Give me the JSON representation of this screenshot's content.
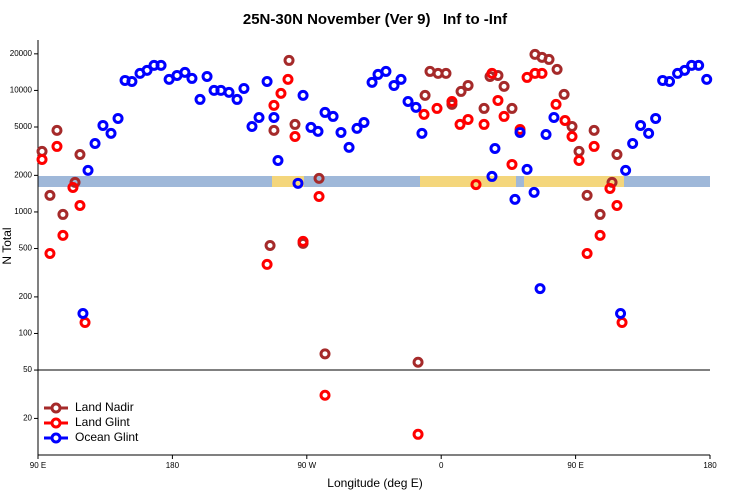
{
  "chart_data": {
    "type": "scatter",
    "title": "25N-30N November (Ver 9)   Inf to -Inf",
    "x_label": "Longitude (deg E)",
    "y_label": "N Total",
    "xlim": [
      90,
      540
    ],
    "xticks": [
      {
        "value": 90,
        "label": "90 E"
      },
      180,
      {
        "value": 270,
        "label": "90 W"
      },
      {
        "value": 360,
        "label": "0"
      },
      {
        "value": 450,
        "label": "90 E"
      },
      {
        "value": 540,
        "label": "180"
      }
    ],
    "ylim": [
      10,
      27000
    ],
    "log_y": true,
    "yticks": [
      20,
      50,
      100,
      200,
      500,
      1000,
      2000,
      5000,
      10000,
      20000
    ],
    "reference_line": 50,
    "legend": "bottom-left",
    "series": [
      {
        "name": "Land Nadir",
        "color": "#a52a2a",
        "x": [
          92.7,
          98.0,
          102.7,
          106.7,
          114.8,
          118.1,
          245.4,
          248.0,
          258.1,
          262.1,
          267.5,
          278.2,
          282.2,
          344.5,
          349.2,
          352.5,
          357.9,
          363.2,
          367.2,
          373.3,
          378.0,
          388.7,
          392.7,
          398.0,
          402.1,
          407.4,
          422.8,
          427.5,
          432.2,
          437.6,
          442.3,
          447.6,
          452.3,
          457.7,
          462.4,
          466.4,
          474.4,
          477.7
        ],
        "values": [
          3150,
          1370,
          4690,
          954,
          1750,
          2970,
          530,
          4690,
          17650,
          5250,
          551,
          1890,
          68,
          58,
          9100,
          14330,
          13800,
          13800,
          7670,
          9810,
          10990,
          7110,
          13030,
          13280,
          10790,
          7110,
          19780,
          18700,
          17990,
          14890,
          9270,
          5050,
          3150,
          1370,
          4690,
          954,
          1750,
          2970
        ]
      },
      {
        "name": "Land Glint",
        "color": "#ff0000",
        "x": [
          92.7,
          98.0,
          102.7,
          106.7,
          113.4,
          118.1,
          121.5,
          243.4,
          248.0,
          252.7,
          257.4,
          262.1,
          267.5,
          278.2,
          282.2,
          344.5,
          348.5,
          357.2,
          367.2,
          372.6,
          378.0,
          383.3,
          388.7,
          394.0,
          398.0,
          402.1,
          407.4,
          412.8,
          417.5,
          422.8,
          427.5,
          436.9,
          442.9,
          447.6,
          452.3,
          457.7,
          462.4,
          466.4,
          473.0,
          477.7,
          481.1
        ],
        "values": [
          2700,
          455,
          3460,
          641,
          1590,
          1130,
          123,
          370,
          7530,
          9450,
          12330,
          4180,
          572,
          1340,
          31,
          14.8,
          6350,
          7110,
          8110,
          5250,
          5770,
          1680,
          5250,
          13800,
          8270,
          6110,
          2460,
          4770,
          12790,
          13800,
          13800,
          7670,
          5660,
          4180,
          2650,
          455,
          3460,
          641,
          1560,
          1130,
          123
        ]
      },
      {
        "name": "Ocean Glint",
        "color": "#0000ff",
        "x": [
          120.1,
          123.5,
          128.2,
          133.5,
          138.9,
          143.6,
          148.3,
          152.9,
          158.3,
          163.0,
          167.7,
          172.4,
          177.8,
          183.1,
          188.4,
          193.1,
          198.5,
          203.2,
          207.9,
          212.5,
          217.9,
          223.3,
          227.9,
          233.3,
          238.0,
          243.4,
          248.0,
          250.7,
          264.1,
          267.5,
          272.8,
          277.5,
          282.2,
          287.6,
          292.9,
          298.3,
          303.6,
          308.3,
          313.7,
          317.7,
          323.0,
          328.4,
          333.1,
          337.8,
          343.1,
          347.1,
          394.0,
          396.0,
          409.4,
          412.8,
          417.5,
          422.2,
          426.2,
          430.2,
          435.5,
          480.1,
          483.5,
          488.2,
          493.5,
          498.9,
          503.6,
          508.3,
          512.9,
          518.3,
          523.0,
          527.7,
          532.4,
          537.8
        ],
        "values": [
          146,
          2200,
          3660,
          5150,
          4430,
          5880,
          12080,
          11850,
          13800,
          14610,
          16070,
          16070,
          12330,
          13280,
          14070,
          12550,
          8430,
          13030,
          10000,
          10000,
          9630,
          8430,
          10380,
          5050,
          5990,
          11850,
          5990,
          2650,
          1720,
          9100,
          4960,
          4600,
          6590,
          6110,
          4510,
          3400,
          4870,
          5450,
          11640,
          13540,
          14330,
          10990,
          12330,
          8110,
          7250,
          4430,
          1960,
          3330,
          1270,
          4510,
          2240,
          1450,
          234,
          4340,
          5990,
          146,
          2200,
          3660,
          5150,
          4430,
          5880,
          12080,
          11850,
          13800,
          14610,
          16070,
          16070,
          12330
        ]
      }
    ]
  }
}
